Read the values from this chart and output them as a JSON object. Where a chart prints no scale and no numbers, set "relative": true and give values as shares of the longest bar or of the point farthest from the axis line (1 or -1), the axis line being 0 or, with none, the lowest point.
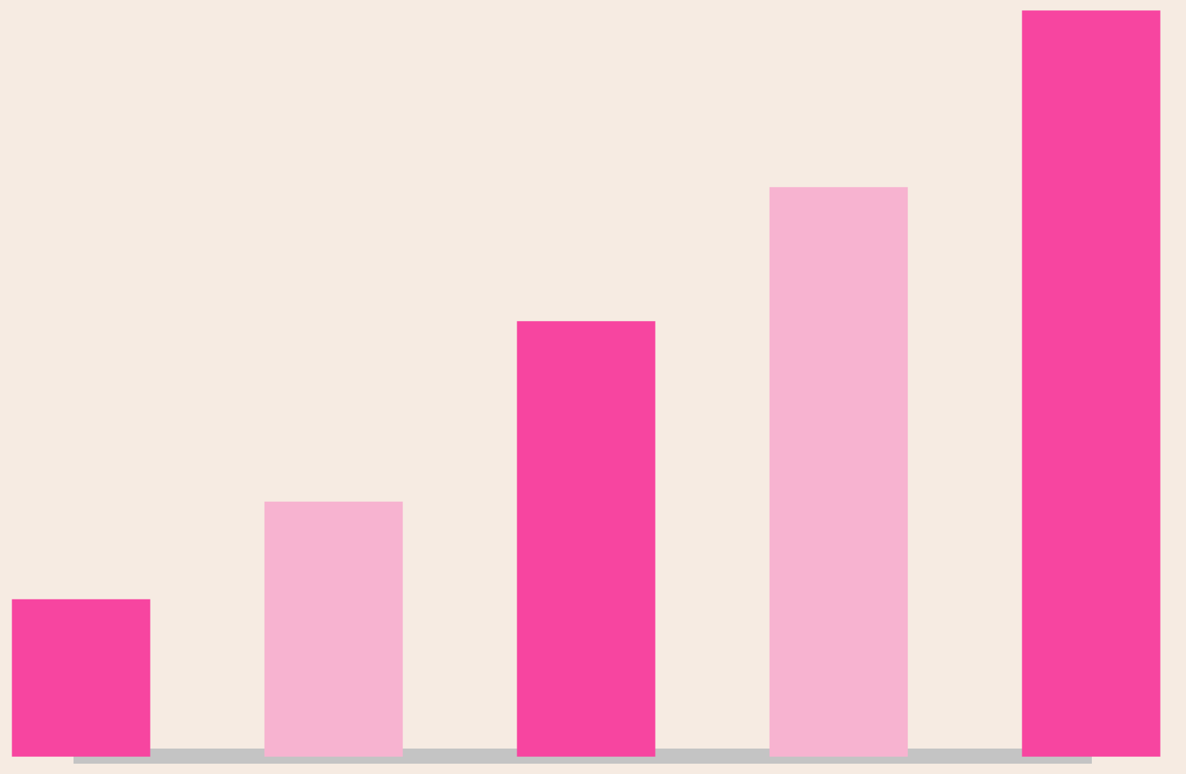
{
  "chart_data": {
    "type": "bar",
    "relative": true,
    "categories": [
      null,
      null,
      null,
      null,
      null
    ],
    "values": [
      0.21,
      0.341,
      0.583,
      0.763,
      1
    ],
    "colors": [
      "#f745a0",
      "#f7b3d0",
      "#f745a0",
      "#f7b3d0",
      "#f745a0"
    ]
  }
}
